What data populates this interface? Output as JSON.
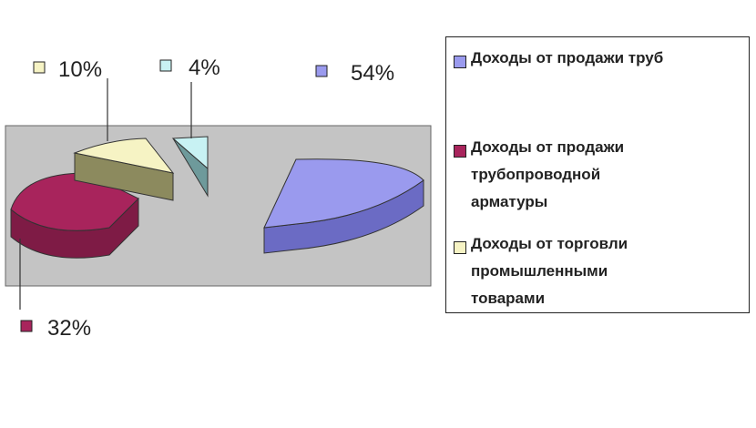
{
  "chart_data": {
    "type": "pie",
    "categories": [
      "Доходы от продажи труб",
      "Доходы от продажи\nтрубопроводной\nарматуры",
      "Доходы от торговли\nпромышленными\nтоварами",
      ""
    ],
    "values": [
      54,
      32,
      10,
      4
    ],
    "data_labels": [
      "54%",
      "32%",
      "10%",
      "4%"
    ],
    "colors": [
      "#9A9AEE",
      "#A8245C",
      "#F6F3C4",
      "#C8F2F3"
    ],
    "side_colors": [
      "#6B6BC4",
      "#7E1B45",
      "#8C8A5E",
      "#6E9A9B"
    ],
    "plot_background": "#C4C4C4",
    "legend": "right",
    "style": "3d-exploded"
  }
}
